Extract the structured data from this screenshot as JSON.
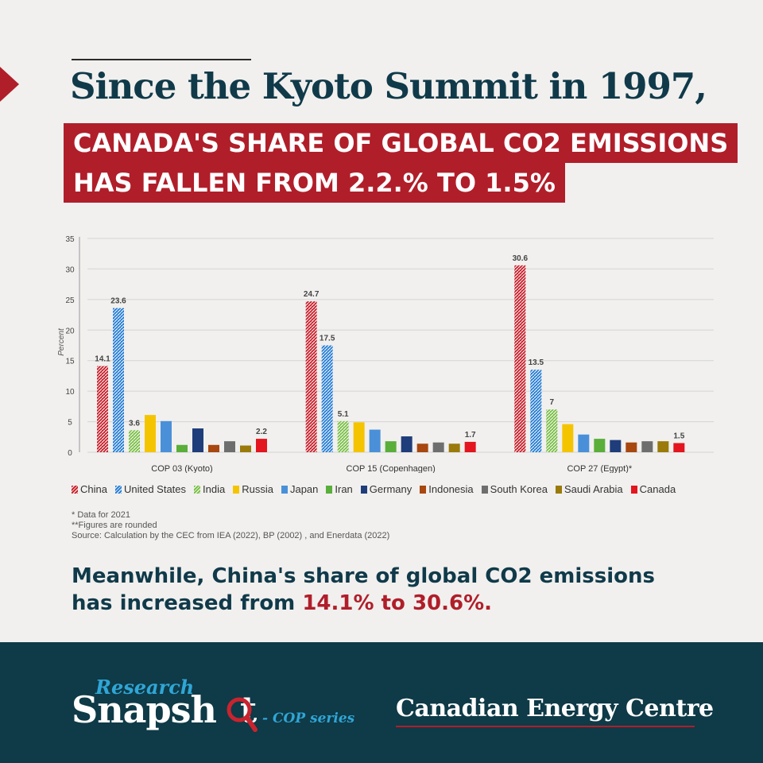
{
  "header": {
    "headline": "Since the Kyoto Summit in 1997,",
    "banner_line1": "CANADA'S SHARE OF GLOBAL CO2 EMISSIONS",
    "banner_line2": "HAS FALLEN FROM 2.2.% TO 1.5%"
  },
  "chart_data": {
    "type": "bar",
    "ylabel": "Percent",
    "ylim": [
      0,
      35
    ],
    "yticks": [
      0,
      5,
      10,
      15,
      20,
      25,
      30,
      35
    ],
    "grid": true,
    "legend_position": "bottom",
    "categories": [
      "COP 03 (Kyoto)",
      "COP 15 (Copenhagen)",
      "COP 27 (Egypt)*"
    ],
    "series": [
      {
        "name": "China",
        "color": "#c8242f",
        "hatched": true,
        "values": [
          14.1,
          24.7,
          30.6
        ],
        "labels": [
          "14.1",
          "24.7",
          "30.6"
        ]
      },
      {
        "name": "United States",
        "color": "#2a7fd4",
        "hatched": true,
        "values": [
          23.6,
          17.5,
          13.5
        ],
        "labels": [
          "23.6",
          "17.5",
          "13.5"
        ]
      },
      {
        "name": "India",
        "color": "#7cbf4a",
        "hatched": true,
        "values": [
          3.6,
          5.1,
          7
        ],
        "labels": [
          "3.6",
          "5.1",
          "7"
        ]
      },
      {
        "name": "Russia",
        "color": "#f5c400",
        "hatched": false,
        "values": [
          6.1,
          4.9,
          4.6
        ],
        "labels": [
          "",
          "",
          ""
        ]
      },
      {
        "name": "Japan",
        "color": "#4a90d9",
        "hatched": false,
        "values": [
          5.1,
          3.7,
          2.9
        ],
        "labels": [
          "",
          "",
          ""
        ]
      },
      {
        "name": "Iran",
        "color": "#5aae3a",
        "hatched": false,
        "values": [
          1.2,
          1.8,
          2.2
        ],
        "labels": [
          "",
          "",
          ""
        ]
      },
      {
        "name": "Germany",
        "color": "#1f3d7a",
        "hatched": false,
        "values": [
          3.9,
          2.6,
          2.0
        ],
        "labels": [
          "",
          "",
          ""
        ]
      },
      {
        "name": "Indonesia",
        "color": "#a8470f",
        "hatched": false,
        "values": [
          1.2,
          1.4,
          1.6
        ],
        "labels": [
          "",
          "",
          ""
        ]
      },
      {
        "name": "South Korea",
        "color": "#6e6e6e",
        "hatched": false,
        "values": [
          1.8,
          1.6,
          1.8
        ],
        "labels": [
          "",
          "",
          ""
        ]
      },
      {
        "name": "Saudi Arabia",
        "color": "#9a7a0a",
        "hatched": false,
        "values": [
          1.1,
          1.4,
          1.8
        ],
        "labels": [
          "",
          "",
          ""
        ]
      },
      {
        "name": "Canada",
        "color": "#e3151e",
        "hatched": false,
        "values": [
          2.2,
          1.7,
          1.5
        ],
        "labels": [
          "2.2",
          "1.7",
          "1.5"
        ]
      }
    ]
  },
  "notes": {
    "note1": "* Data for 2021",
    "note2": "**Figures are rounded",
    "source": "Source:  Calculation by the CEC from IEA (2022), BP (2002) , and Enerdata (2022)"
  },
  "meanwhile": {
    "line1": "Meanwhile, China's share of global CO2 emissions",
    "line2_prefix": "has increased from ",
    "line2_highlight": "14.1% to 30.6%."
  },
  "footer": {
    "research": "Research",
    "snapshot": "Snapsh",
    "snapshot_end": "t",
    "series_tag": "- COP series",
    "organization": "Canadian Energy Centre"
  },
  "colors": {
    "navy": "#103a4a",
    "accent_red": "#b01e2a",
    "footer_bg": "#0f3a47",
    "accent_blue": "#2fa6d6"
  }
}
